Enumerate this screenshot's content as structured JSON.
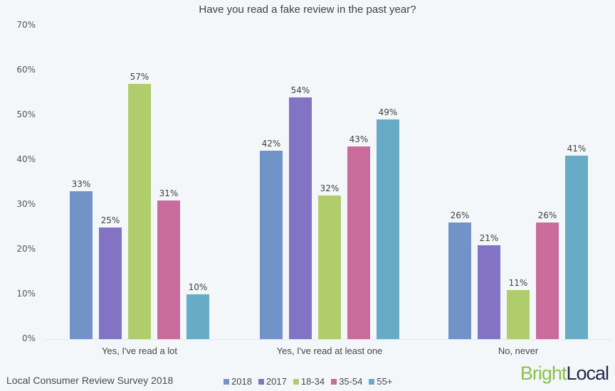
{
  "chart_data": {
    "type": "bar",
    "title": "Have you read a fake review in the past year?",
    "xlabel": "",
    "ylabel": "",
    "ylim": [
      0,
      70
    ],
    "yticks": [
      "0%",
      "10%",
      "20%",
      "30%",
      "40%",
      "50%",
      "60%",
      "70%"
    ],
    "grid": false,
    "legend_position": "bottom",
    "categories": [
      "Yes, I've read a lot",
      "Yes, I've read at least one",
      "No, never"
    ],
    "series": [
      {
        "name": "2018",
        "color": "#7293c8",
        "values": [
          33,
          42,
          26
        ]
      },
      {
        "name": "2017",
        "color": "#8273c4",
        "values": [
          25,
          54,
          21
        ]
      },
      {
        "name": "18-34",
        "color": "#b0cd6c",
        "values": [
          57,
          32,
          11
        ]
      },
      {
        "name": "35-54",
        "color": "#c96b9b",
        "values": [
          31,
          43,
          26
        ]
      },
      {
        "name": "55+",
        "color": "#68abc6",
        "values": [
          10,
          49,
          41
        ]
      }
    ],
    "data_labels": [
      [
        "33%",
        "42%",
        "26%"
      ],
      [
        "25%",
        "54%",
        "21%"
      ],
      [
        "57%",
        "32%",
        "11%"
      ],
      [
        "31%",
        "43%",
        "26%"
      ],
      [
        "10%",
        "49%",
        "41%"
      ]
    ]
  },
  "footer": {
    "source": "Local Consumer Review Survey 2018",
    "logo_bright": "Bright",
    "logo_local": "Local"
  }
}
